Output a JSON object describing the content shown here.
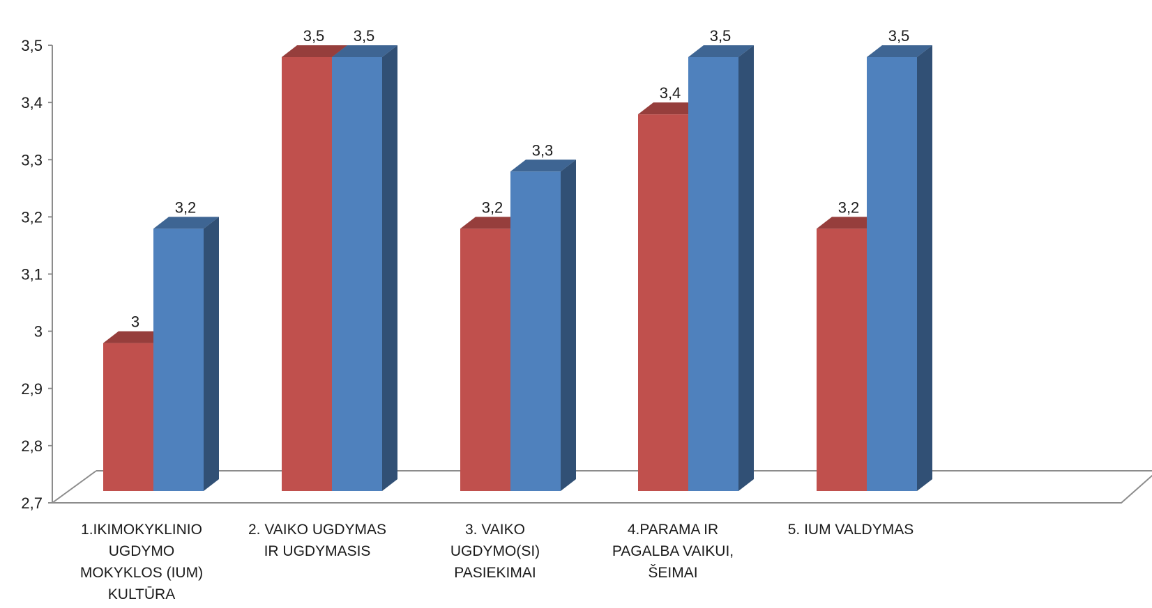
{
  "chart_data": {
    "type": "bar",
    "style": "3d-clustered-column",
    "title": "",
    "xlabel": "",
    "ylabel": "",
    "ylim": [
      2.7,
      3.5
    ],
    "yticks": [
      "2,7",
      "2,8",
      "2,9",
      "3",
      "3,1",
      "3,2",
      "3,3",
      "3,4",
      "3,5"
    ],
    "grid": false,
    "legend": "none",
    "categories": [
      [
        "1.IKIMOKYKLINIO",
        "UGDYMO",
        "MOKYKLOS (IUM)",
        "KULTŪRA"
      ],
      [
        "2. VAIKO UGDYMAS",
        "IR UGDYMASIS"
      ],
      [
        "3. VAIKO",
        "UGDYMO(SI)",
        "PASIEKIMAI"
      ],
      [
        "4.PARAMA IR",
        "PAGALBA VAIKUI,",
        "ŠEIMAI"
      ],
      [
        "5. IUM VALDYMAS"
      ]
    ],
    "series": [
      {
        "color": "#c0504d",
        "values": [
          3.0,
          3.5,
          3.2,
          3.4,
          3.2
        ],
        "labels": [
          "3",
          "3,5",
          "3,2",
          "3,4",
          "3,2"
        ]
      },
      {
        "color": "#4f81bd",
        "values": [
          3.2,
          3.5,
          3.3,
          3.5,
          3.5
        ],
        "labels": [
          "3,2",
          "3,5",
          "3,3",
          "3,5",
          "3,5"
        ]
      }
    ]
  }
}
